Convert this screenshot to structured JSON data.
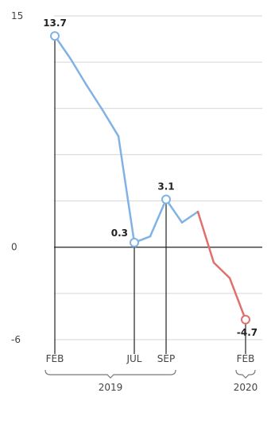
{
  "chart_data": {
    "type": "line",
    "ylim": [
      -6,
      15
    ],
    "yticks": [
      {
        "value": 15,
        "label": "15"
      },
      {
        "value": 0,
        "label": "0"
      },
      {
        "value": -6,
        "label": "-6"
      }
    ],
    "grid": true,
    "x": [
      "2019-02",
      "2019-03",
      "2019-04",
      "2019-05",
      "2019-06",
      "2019-07",
      "2019-08",
      "2019-09",
      "2019-10",
      "2019-11",
      "2019-12",
      "2020-01",
      "2020-02"
    ],
    "values": [
      13.7,
      12.2,
      10.5,
      8.9,
      7.2,
      0.3,
      0.7,
      3.1,
      1.6,
      2.3,
      -1.0,
      -2.0,
      -4.7
    ],
    "segment_colors": {
      "rising": "#7fb3e6",
      "falling": "#e0706b"
    },
    "highlight_points": [
      {
        "x": "2019-02",
        "value": 13.7,
        "label": "13.7"
      },
      {
        "x": "2019-07",
        "value": 0.3,
        "label": "0.3"
      },
      {
        "x": "2019-09",
        "value": 3.1,
        "label": "3.1"
      },
      {
        "x": "2020-02",
        "value": -4.7,
        "label": "-4.7"
      }
    ],
    "x_tick_labels": [
      {
        "x": "2019-02",
        "label": "FEB"
      },
      {
        "x": "2019-07",
        "label": "JUL"
      },
      {
        "x": "2019-09",
        "label": "SEP"
      },
      {
        "x": "2020-02",
        "label": "FEB"
      }
    ],
    "year_groups": [
      {
        "label": "2019",
        "from": "2019-02",
        "to": "2019-09"
      },
      {
        "label": "2020",
        "from": "2020-02",
        "to": "2020-02"
      }
    ]
  }
}
